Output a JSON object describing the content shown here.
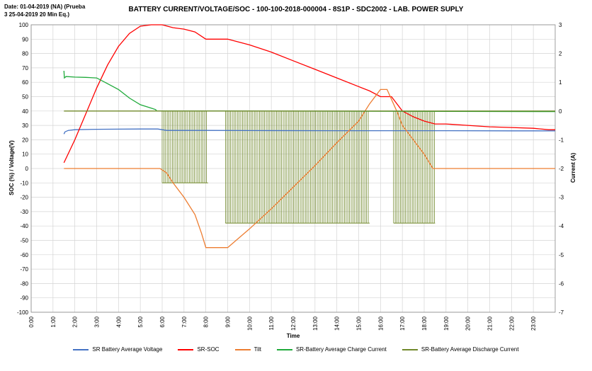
{
  "header": {
    "date_note_line1": "Date: 01-04-2019 (NA) (Prueba",
    "date_note_line2": "3 25-04-2019 20 Min Eq.)"
  },
  "chart_data": {
    "type": "line",
    "title": "BATTERY CURRENT/VOLTAGE/SOC - 100-100-2018-000004 - 8S1P - SDC2002 - LAB. POWER SUPLY",
    "xlabel": "Time",
    "ylabel": "SOC (%) / Voltage(V)",
    "y2label": "Current (A)",
    "x_ticks": [
      "0:00",
      "1:00",
      "2:00",
      "3:00",
      "4:00",
      "5:00",
      "6:00",
      "7:00",
      "8:00",
      "9:00",
      "10:00",
      "11:00",
      "12:00",
      "13:00",
      "14:00",
      "15:00",
      "16:00",
      "17:00",
      "18:00",
      "19:00",
      "20:00",
      "21:00",
      "22:00",
      "23:00"
    ],
    "xlim": [
      0,
      24
    ],
    "ylim": [
      -100,
      100
    ],
    "y_ticks": [
      100,
      90,
      80,
      70,
      60,
      50,
      40,
      30,
      20,
      10,
      0,
      -10,
      -20,
      -30,
      -40,
      -50,
      -60,
      -70,
      -80,
      -90,
      -100
    ],
    "y2lim": [
      -7,
      3
    ],
    "y2_ticks": [
      3,
      2,
      1,
      0,
      -1,
      -2,
      -3,
      -4,
      -5,
      -6,
      -7
    ],
    "grid": true,
    "legend_position": "bottom",
    "series": [
      {
        "name": "SR Battery Average Voltage",
        "color": "#4472c4",
        "axis": "left",
        "x": [
          1.5,
          1.55,
          1.7,
          2.0,
          3.0,
          4.0,
          5.0,
          5.8,
          6.2,
          8.0,
          10.0,
          14.0,
          18.0,
          22.0,
          24.0
        ],
        "y": [
          24,
          25.5,
          26.5,
          27,
          27.3,
          27.4,
          27.5,
          27.5,
          26.5,
          26.5,
          26.4,
          26.3,
          26.3,
          26.2,
          26.2
        ]
      },
      {
        "name": "SR-SOC",
        "color": "#ff0000",
        "axis": "left",
        "x": [
          1.5,
          2.0,
          2.5,
          3.0,
          3.5,
          4.0,
          4.5,
          5.0,
          5.5,
          6.0,
          6.5,
          7.0,
          7.5,
          8.0,
          8.5,
          9.0,
          10.0,
          11.0,
          12.0,
          13.0,
          14.0,
          15.0,
          15.5,
          16.0,
          16.5,
          17.0,
          17.5,
          18.0,
          18.5,
          19.0,
          20.0,
          21.0,
          22.0,
          23.0,
          23.7,
          24.0
        ],
        "y": [
          4,
          20,
          38,
          56,
          72,
          85,
          94,
          99,
          100,
          100,
          98,
          97,
          95,
          90,
          90,
          90,
          86,
          81,
          75,
          69,
          63,
          57,
          54,
          50,
          50,
          40,
          36,
          33,
          31,
          31,
          30,
          29,
          28.5,
          28,
          27,
          27
        ]
      },
      {
        "name": "Tilt",
        "color": "#ed7d31",
        "axis": "left",
        "x": [
          1.5,
          5.9,
          6.2,
          6.5,
          7.0,
          7.5,
          7.8,
          8.0,
          8.5,
          9.0,
          10.0,
          11.0,
          12.0,
          13.0,
          14.0,
          15.0,
          15.5,
          16.0,
          16.3,
          16.8,
          17.0,
          17.5,
          18.0,
          18.4,
          18.6,
          24.0
        ],
        "y": [
          0,
          0,
          -3,
          -10,
          -20,
          -32,
          -45,
          -55,
          -55,
          -55,
          -42,
          -28,
          -13,
          2,
          18,
          33,
          45,
          55,
          55,
          38,
          30,
          20,
          10,
          0,
          0,
          0
        ]
      },
      {
        "name": "SR-Battery Average Charge Current",
        "color": "#1faa3b",
        "axis": "right",
        "x": [
          1.5,
          1.52,
          1.6,
          2.0,
          2.5,
          3.0,
          3.5,
          4.0,
          4.5,
          5.0,
          5.5,
          5.7,
          5.75,
          7.0,
          8.5,
          9.0,
          24.0
        ],
        "y": [
          1.4,
          1.15,
          1.2,
          1.18,
          1.17,
          1.15,
          0.95,
          0.75,
          0.45,
          0.22,
          0.1,
          0.05,
          0.0,
          0.0,
          0.0,
          0.0,
          -0.02
        ]
      },
      {
        "name": "SR-Battery Average Discharge Current",
        "color": "#70882a",
        "axis": "right",
        "x": [
          1.5,
          24.0
        ],
        "y": [
          0.0,
          0.0
        ],
        "pulse_bands": [
          {
            "x_start": 6.0,
            "x_end": 8.1,
            "min": -2.5
          },
          {
            "x_start": 8.9,
            "x_end": 15.5,
            "min": -3.9
          },
          {
            "x_start": 16.6,
            "x_end": 18.5,
            "min": -3.9
          }
        ]
      }
    ]
  }
}
